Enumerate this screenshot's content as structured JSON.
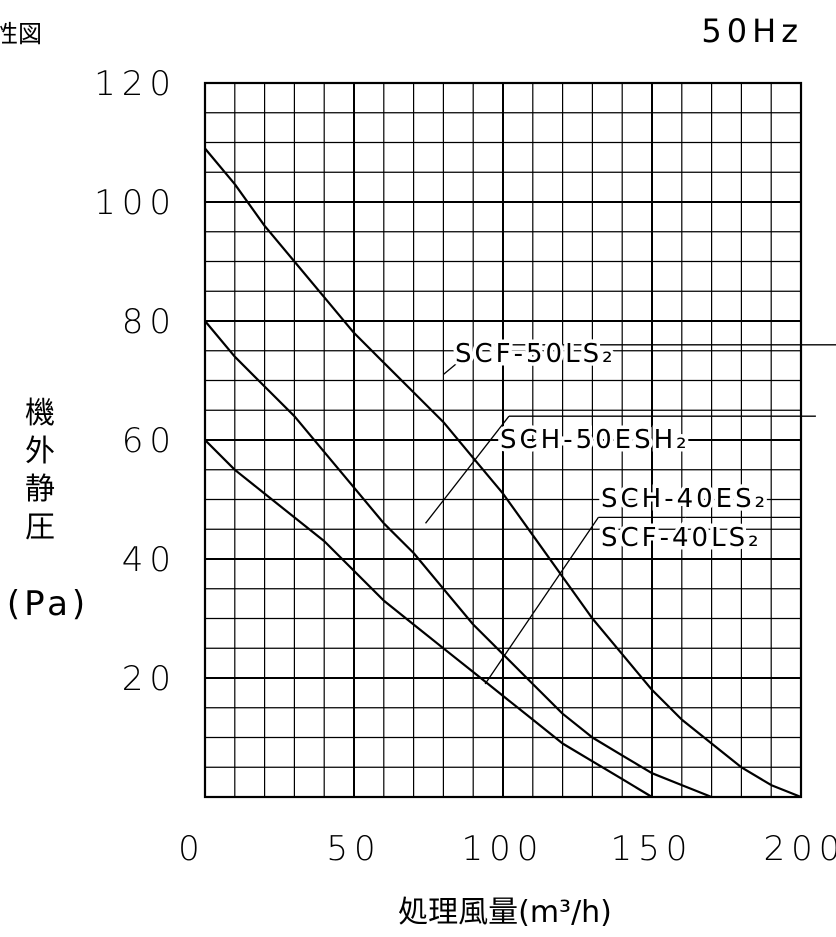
{
  "header": {
    "title_fragment": "性図",
    "frequency": "50Hz"
  },
  "chart_data": {
    "type": "line",
    "xlabel": "処理風量(m³/h)",
    "ylabel": "機外静圧",
    "ylabel_unit": "(Pa)",
    "xlim": [
      0,
      200
    ],
    "ylim": [
      0,
      120
    ],
    "x_ticks": [
      "0",
      "50",
      "100",
      "150",
      "200"
    ],
    "y_ticks": [
      "20",
      "40",
      "60",
      "80",
      "100",
      "120"
    ],
    "grid": true,
    "series": [
      {
        "name": "SCF-50LS₂",
        "x": [
          0,
          10,
          20,
          30,
          40,
          50,
          60,
          70,
          80,
          90,
          100,
          110,
          120,
          130,
          140,
          150,
          160,
          170,
          180,
          190,
          200
        ],
        "y": [
          109,
          103,
          96,
          90,
          84,
          78,
          73,
          68,
          63,
          57,
          51,
          44,
          37,
          30,
          24,
          18,
          13,
          9,
          5,
          2,
          0
        ]
      },
      {
        "name": "SCH-50ESH₂",
        "x": [
          0,
          10,
          20,
          30,
          40,
          50,
          60,
          70,
          80,
          90,
          100,
          110,
          120,
          130,
          140,
          150,
          160,
          170
        ],
        "y": [
          80,
          74,
          69,
          64,
          58,
          52,
          46,
          41,
          35,
          29,
          24,
          19,
          14,
          10,
          7,
          4,
          2,
          0
        ]
      },
      {
        "name": "SCH-40ES₂ / SCF-40LS₂",
        "x": [
          0,
          10,
          20,
          30,
          40,
          50,
          60,
          70,
          80,
          90,
          100,
          110,
          120,
          130,
          140,
          150
        ],
        "y": [
          60,
          55,
          51,
          47,
          43,
          38,
          33,
          29,
          25,
          21,
          17,
          13,
          9,
          6,
          3,
          0
        ]
      }
    ],
    "labels": [
      "SCF-50LS₂",
      "SCH-50ESH₂",
      "SCH-40ES₂",
      "SCF-40LS₂"
    ]
  }
}
